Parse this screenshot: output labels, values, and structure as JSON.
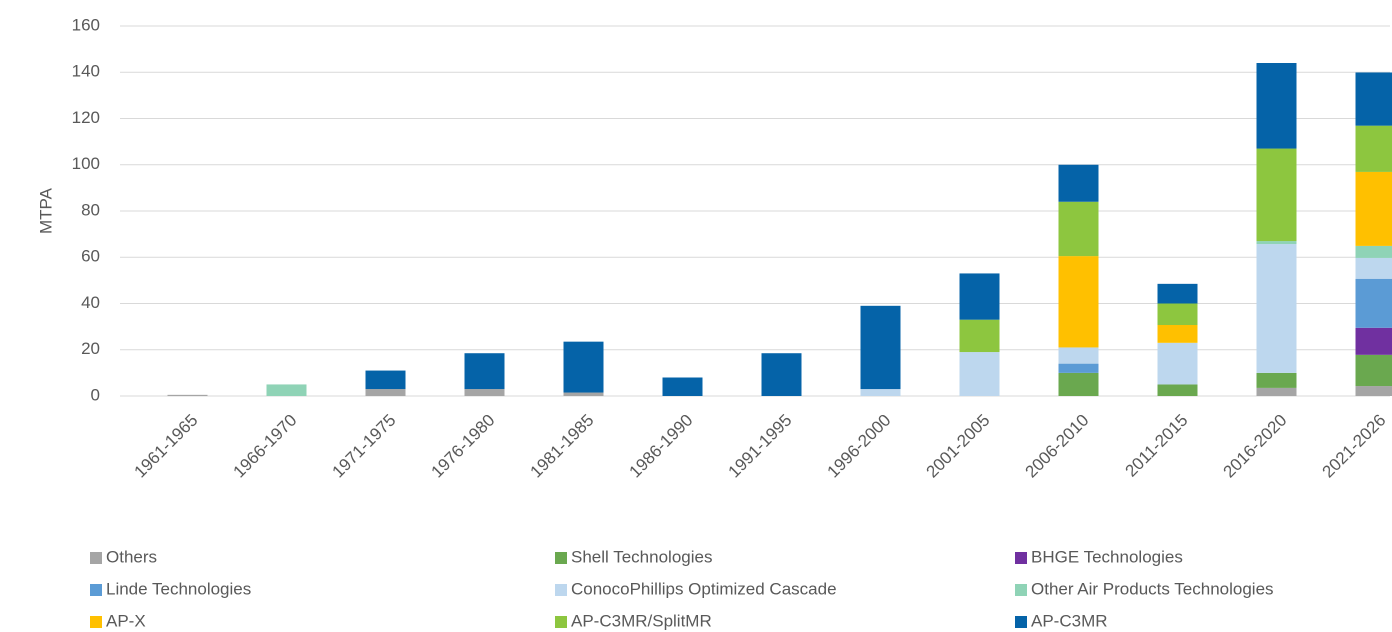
{
  "chart_data": {
    "type": "bar",
    "stacked": true,
    "ylabel": "MTPA",
    "categories": [
      "1961-1965",
      "1966-1970",
      "1971-1975",
      "1976-1980",
      "1981-1985",
      "1986-1990",
      "1991-1995",
      "1996-2000",
      "2001-2005",
      "2006-2010",
      "2011-2015",
      "2016-2020",
      "2021-2026"
    ],
    "series": [
      {
        "name": "Others",
        "color": "#a5a5a5",
        "values": [
          0.5,
          0,
          3,
          3,
          1.5,
          0,
          0,
          0,
          0,
          0,
          0,
          3.5,
          4.3
        ]
      },
      {
        "name": "Shell Technologies",
        "color": "#6aa84f",
        "values": [
          0,
          0,
          0,
          0,
          0,
          0,
          0,
          0,
          0,
          10,
          5,
          6.5,
          13.5
        ]
      },
      {
        "name": "BHGE Technologies",
        "color": "#7030a0",
        "values": [
          0,
          0,
          0,
          0,
          0,
          0,
          0,
          0,
          0,
          0,
          0,
          0,
          11.7
        ]
      },
      {
        "name": "Linde Technologies",
        "color": "#5b9bd5",
        "values": [
          0,
          0,
          0,
          0,
          0,
          0,
          0,
          0,
          0,
          4,
          0,
          0,
          21.2
        ]
      },
      {
        "name": "ConocoPhillips Optimized Cascade",
        "color": "#bdd7ee",
        "values": [
          0,
          0,
          0,
          0,
          0,
          0,
          0,
          3,
          19,
          7,
          18,
          55.7,
          9
        ]
      },
      {
        "name": "Other Air Products Technologies",
        "color": "#8fd3b6",
        "values": [
          0,
          5,
          0,
          0,
          0,
          0,
          0,
          0,
          0,
          0,
          0,
          1.3,
          5.2
        ]
      },
      {
        "name": "AP-X",
        "color": "#ffc000",
        "values": [
          0,
          0,
          0,
          0,
          0,
          0,
          0,
          0,
          0,
          39.5,
          7.7,
          0,
          32
        ]
      },
      {
        "name": "AP-C3MR/SplitMR",
        "color": "#8dc63f",
        "values": [
          0,
          0,
          0,
          0,
          0,
          0,
          0,
          0,
          14,
          23.5,
          9.3,
          40,
          20
        ]
      },
      {
        "name": "AP-C3MR",
        "color": "#0563a8",
        "values": [
          0,
          0,
          8,
          15.5,
          22,
          8,
          18.5,
          36,
          20,
          16,
          8.5,
          37,
          23
        ]
      }
    ],
    "ylim": [
      0,
      160
    ],
    "yticks": [
      0,
      20,
      40,
      60,
      80,
      100,
      120,
      140,
      160
    ],
    "grid": true
  }
}
